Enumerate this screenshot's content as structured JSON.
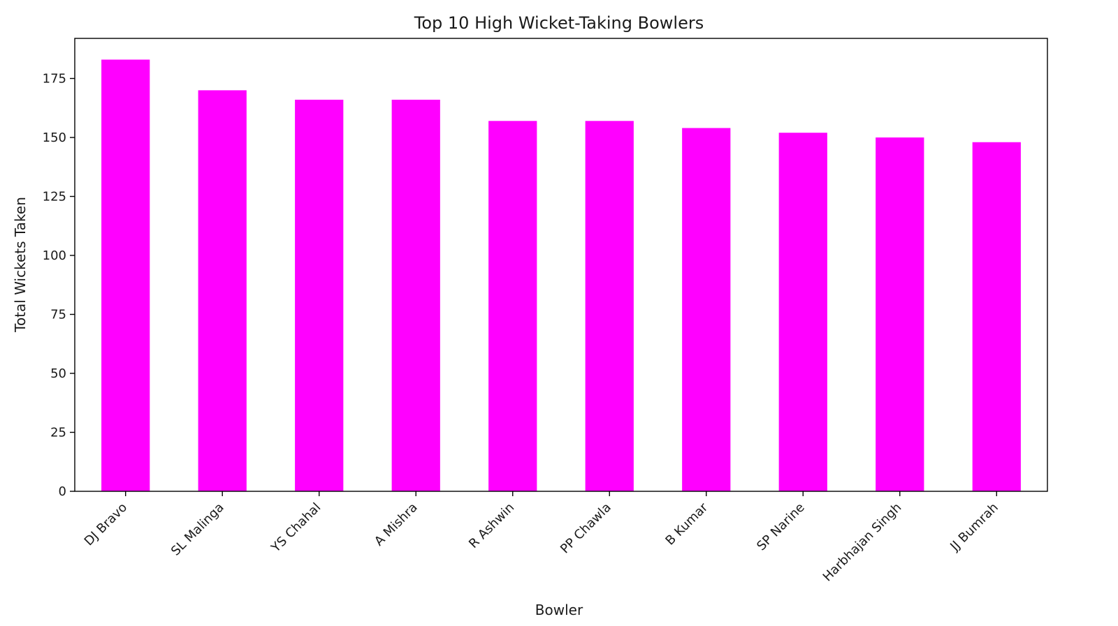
{
  "chart_data": {
    "type": "bar",
    "title": "Top 10 High Wicket-Taking Bowlers",
    "xlabel": "Bowler",
    "ylabel": "Total Wickets Taken",
    "categories": [
      "DJ Bravo",
      "SL Malinga",
      "YS Chahal",
      "A Mishra",
      "R Ashwin",
      "PP Chawla",
      "B Kumar",
      "SP Narine",
      "Harbhajan Singh",
      "JJ Bumrah"
    ],
    "values": [
      183,
      170,
      166,
      166,
      157,
      157,
      154,
      152,
      150,
      148
    ],
    "ylim": [
      0,
      192
    ],
    "yticks": [
      0,
      25,
      50,
      75,
      100,
      125,
      150,
      175
    ],
    "bar_color": "#ff00ff",
    "grid": false,
    "legend": "none"
  }
}
